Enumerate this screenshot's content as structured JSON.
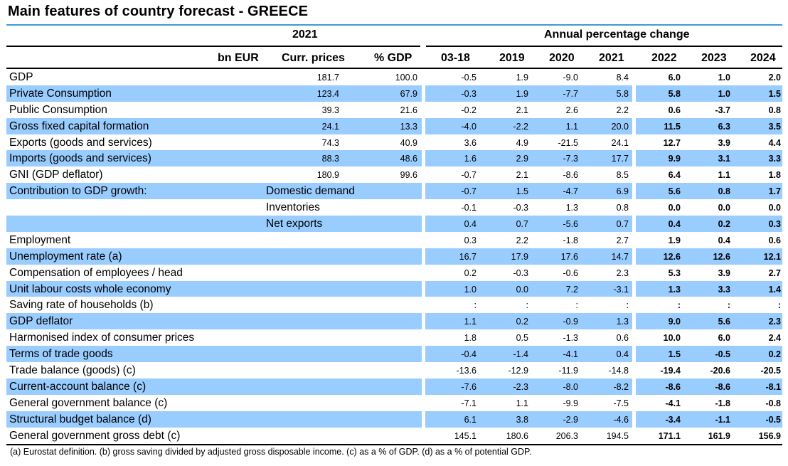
{
  "title": "Main features of country forecast - GREECE",
  "header": {
    "year_2021": "2021",
    "annual_change": "Annual percentage change",
    "columns": [
      "bn EUR",
      "Curr. prices",
      "% GDP",
      "03-18",
      "2019",
      "2020",
      "2021",
      "2022",
      "2023",
      "2024"
    ]
  },
  "rows": [
    {
      "label": "GDP",
      "sub": "",
      "v": [
        "181.7",
        "100.0",
        "-0.5",
        "1.9",
        "-9.0",
        "8.4",
        "6.0",
        "1.0",
        "2.0"
      ]
    },
    {
      "label": "Private Consumption",
      "sub": "",
      "v": [
        "123.4",
        "67.9",
        "-0.3",
        "1.9",
        "-7.7",
        "5.8",
        "5.8",
        "1.0",
        "1.5"
      ]
    },
    {
      "label": "Public Consumption",
      "sub": "",
      "v": [
        "39.3",
        "21.6",
        "-0.2",
        "2.1",
        "2.6",
        "2.2",
        "0.6",
        "-3.7",
        "0.8"
      ]
    },
    {
      "label": "Gross fixed capital formation",
      "sub": "",
      "v": [
        "24.1",
        "13.3",
        "-4.0",
        "-2.2",
        "1.1",
        "20.0",
        "11.5",
        "6.3",
        "3.5"
      ]
    },
    {
      "label": "Exports (goods and services)",
      "sub": "",
      "v": [
        "74.3",
        "40.9",
        "3.6",
        "4.9",
        "-21.5",
        "24.1",
        "12.7",
        "3.9",
        "4.4"
      ]
    },
    {
      "label": "Imports (goods and services)",
      "sub": "",
      "v": [
        "88.3",
        "48.6",
        "1.6",
        "2.9",
        "-7.3",
        "17.7",
        "9.9",
        "3.1",
        "3.3"
      ]
    },
    {
      "label": "GNI (GDP deflator)",
      "sub": "",
      "v": [
        "180.9",
        "99.6",
        "-0.7",
        "2.1",
        "-8.6",
        "8.5",
        "6.4",
        "1.1",
        "1.8"
      ]
    },
    {
      "label": "Contribution to GDP growth:",
      "sub": "Domestic demand",
      "v": [
        "",
        "",
        "-0.7",
        "1.5",
        "-4.7",
        "6.9",
        "5.6",
        "0.8",
        "1.7"
      ]
    },
    {
      "label": "",
      "sub": "Inventories",
      "v": [
        "",
        "",
        "-0.1",
        "-0.3",
        "1.3",
        "0.8",
        "0.0",
        "0.0",
        "0.0"
      ]
    },
    {
      "label": "",
      "sub": "Net exports",
      "v": [
        "",
        "",
        "0.4",
        "0.7",
        "-5.6",
        "0.7",
        "0.4",
        "0.2",
        "0.3"
      ]
    },
    {
      "label": "Employment",
      "sub": "",
      "v": [
        "",
        "",
        "0.3",
        "2.2",
        "-1.8",
        "2.7",
        "1.9",
        "0.4",
        "0.6"
      ]
    },
    {
      "label": "Unemployment rate (a)",
      "sub": "",
      "v": [
        "",
        "",
        "16.7",
        "17.9",
        "17.6",
        "14.7",
        "12.6",
        "12.6",
        "12.1"
      ]
    },
    {
      "label": "Compensation of employees / head",
      "sub": "",
      "v": [
        "",
        "",
        "0.2",
        "-0.3",
        "-0.6",
        "2.3",
        "5.3",
        "3.9",
        "2.7"
      ]
    },
    {
      "label": "Unit labour costs whole economy",
      "sub": "",
      "v": [
        "",
        "",
        "1.0",
        "0.0",
        "7.2",
        "-3.1",
        "1.3",
        "3.3",
        "1.4"
      ]
    },
    {
      "label": "Saving rate of households (b)",
      "sub": "",
      "v": [
        "",
        "",
        ":",
        ":",
        ":",
        ":",
        ":",
        ":",
        ":"
      ]
    },
    {
      "label": "GDP deflator",
      "sub": "",
      "v": [
        "",
        "",
        "1.1",
        "0.2",
        "-0.9",
        "1.3",
        "9.0",
        "5.6",
        "2.3"
      ]
    },
    {
      "label": "Harmonised index of consumer prices",
      "sub": "",
      "v": [
        "",
        "",
        "1.8",
        "0.5",
        "-1.3",
        "0.6",
        "10.0",
        "6.0",
        "2.4"
      ]
    },
    {
      "label": "Terms of trade goods",
      "sub": "",
      "v": [
        "",
        "",
        "-0.4",
        "-1.4",
        "-4.1",
        "0.4",
        "1.5",
        "-0.5",
        "0.2"
      ]
    },
    {
      "label": "Trade balance (goods) (c)",
      "sub": "",
      "v": [
        "",
        "",
        "-13.6",
        "-12.9",
        "-11.9",
        "-14.8",
        "-19.4",
        "-20.6",
        "-20.5"
      ]
    },
    {
      "label": "Current-account balance (c)",
      "sub": "",
      "v": [
        "",
        "",
        "-7.6",
        "-2.3",
        "-8.0",
        "-8.2",
        "-8.6",
        "-8.6",
        "-8.1"
      ]
    },
    {
      "label": "General government balance (c)",
      "sub": "",
      "v": [
        "",
        "",
        "-7.1",
        "1.1",
        "-9.9",
        "-7.5",
        "-4.1",
        "-1.8",
        "-0.8"
      ]
    },
    {
      "label": "Structural budget balance (d)",
      "sub": "",
      "v": [
        "",
        "",
        "6.1",
        "3.8",
        "-2.9",
        "-4.6",
        "-3.4",
        "-1.1",
        "-0.5"
      ]
    },
    {
      "label": "General government gross debt (c)",
      "sub": "",
      "v": [
        "",
        "",
        "145.1",
        "180.6",
        "206.3",
        "194.5",
        "171.1",
        "161.9",
        "156.9"
      ]
    }
  ],
  "footnote": "(a) Eurostat definition.  (b) gross saving divided by adjusted gross disposable income.  (c) as a % of GDP. (d) as a % of potential GDP.",
  "colors": {
    "band": "#99ccff",
    "title_rule": "#3c9cd6"
  }
}
